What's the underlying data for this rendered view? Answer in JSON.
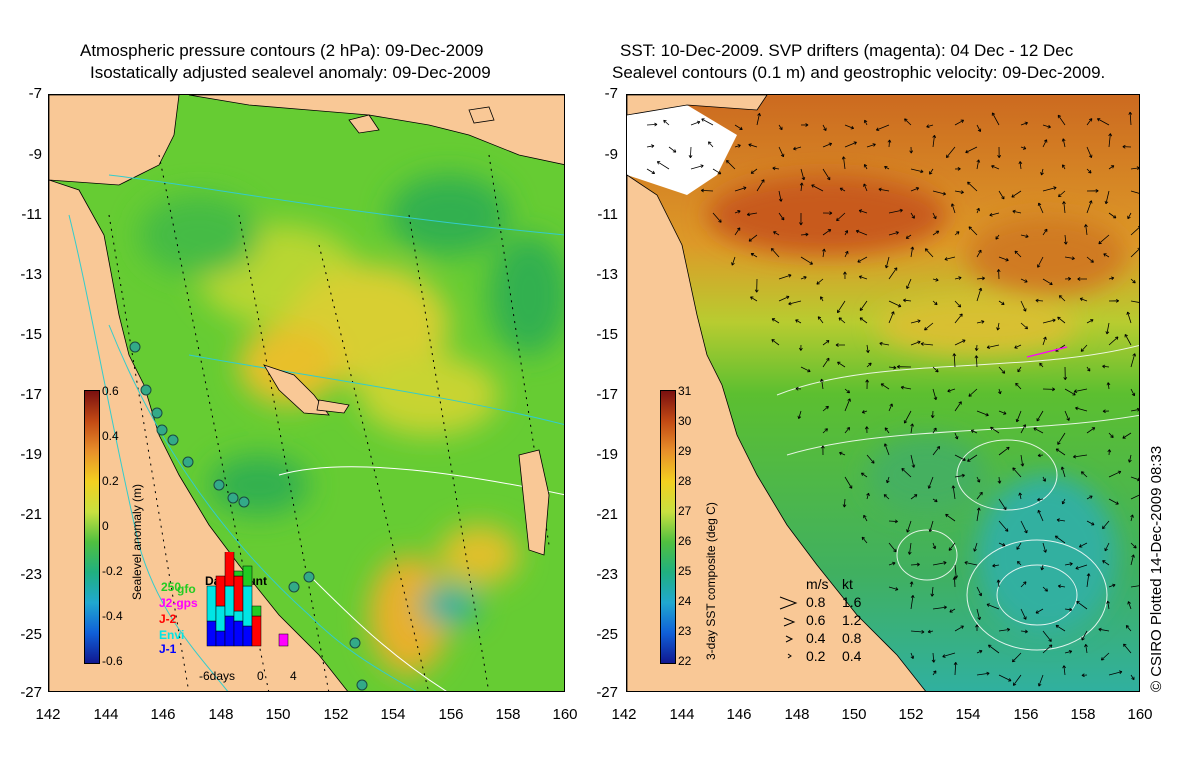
{
  "left_map": {
    "title_line1": "Atmospheric pressure contours (2 hPa): 09-Dec-2009",
    "title_line2": "Isostatically adjusted sealevel anomaly: 09-Dec-2009",
    "y_ticks": [
      "-7",
      "-9",
      "-11",
      "-13",
      "-15",
      "-17",
      "-19",
      "-21",
      "-23",
      "-25",
      "-27"
    ],
    "x_ticks": [
      "142",
      "144",
      "146",
      "148",
      "150",
      "152",
      "154",
      "156",
      "158",
      "160"
    ],
    "colorbar": {
      "title": "Sealevel anomaly (m)",
      "labels": [
        "0.6",
        "0.4",
        "0.2",
        "0",
        "-0.2",
        "-0.4",
        "-0.6"
      ],
      "range": [
        -0.6,
        0.6
      ]
    },
    "data_count": {
      "title": "Data count",
      "scale_label": "250",
      "x_labels": [
        "-6days",
        "0",
        "4"
      ],
      "satellites": [
        {
          "name": "gfo",
          "color": "#22cc22"
        },
        {
          "name": "J2-gps",
          "color": "#ff00ff"
        },
        {
          "name": "J-2",
          "color": "#ff0000"
        },
        {
          "name": "Envi",
          "color": "#00e5e5"
        },
        {
          "name": "J-1",
          "color": "#0000ff"
        }
      ],
      "bars": [
        {
          "day": -6,
          "J-1": 0.25,
          "Envi": 0.35,
          "J-2": 0.0,
          "gfo": 0.0
        },
        {
          "day": -5,
          "J-1": 0.15,
          "Envi": 0.25,
          "J-2": 0.3,
          "gfo": 0.0
        },
        {
          "day": -4,
          "J-1": 0.3,
          "Envi": 0.3,
          "J-2": 0.45,
          "gfo": 0.1
        },
        {
          "day": -3,
          "J-1": 0.25,
          "Envi": 0.1,
          "J-2": 0.35,
          "gfo": 0.05
        },
        {
          "day": -2,
          "J-1": 0.2,
          "Envi": 0.4,
          "J-2": 0.0,
          "gfo": 0.2
        },
        {
          "day": -1,
          "J-1": 0.0,
          "Envi": 0.0,
          "J-2": 0.3,
          "gfo": 0.1
        },
        {
          "day": 2,
          "J2-gps": 0.12
        }
      ]
    }
  },
  "right_map": {
    "title_line1": "SST: 10-Dec-2009. SVP drifters (magenta): 04 Dec - 12 Dec",
    "title_line2": "Sealevel contours (0.1 m) and geostrophic velocity: 09-Dec-2009.",
    "y_ticks": [
      "-7",
      "-9",
      "-11",
      "-13",
      "-15",
      "-17",
      "-19",
      "-21",
      "-23",
      "-25",
      "-27"
    ],
    "x_ticks": [
      "142",
      "144",
      "146",
      "148",
      "150",
      "152",
      "154",
      "156",
      "158",
      "160"
    ],
    "colorbar": {
      "title": "3-day SST composite (deg C)",
      "labels": [
        "31",
        "30",
        "29",
        "28",
        "27",
        "26",
        "25",
        "24",
        "23",
        "22"
      ],
      "range": [
        22,
        31
      ]
    },
    "velocity_legend": {
      "header_ms": "m/s",
      "header_kt": "kt",
      "rows": [
        {
          "ms": "0.8",
          "kt": "1.6"
        },
        {
          "ms": "0.6",
          "kt": "1.2"
        },
        {
          "ms": "0.4",
          "kt": "0.8"
        },
        {
          "ms": "0.2",
          "kt": "0.4"
        }
      ]
    }
  },
  "credit": "© CSIRO Plotted 14-Dec-2009 08:33",
  "colors": {
    "land": "#f9c896",
    "left_ocean": "#66cc33",
    "right_warm": "#dd7722",
    "right_cool": "#33bb55"
  }
}
